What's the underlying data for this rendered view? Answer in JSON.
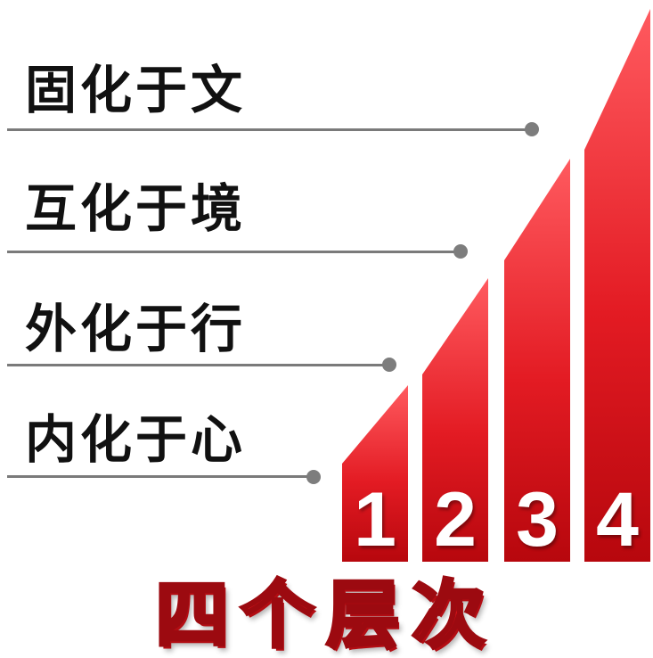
{
  "levels": [
    {
      "label": "固化于文",
      "number": "4"
    },
    {
      "label": "互化于境",
      "number": "3"
    },
    {
      "label": "外化于行",
      "number": "2"
    },
    {
      "label": "内化于心",
      "number": "1"
    }
  ],
  "footer_title": "四个层次",
  "colors": {
    "bar_top": "#ff5a5f",
    "bar_bottom": "#b7070d",
    "line": "#7a7a7a",
    "text": "#111111",
    "title": "#e3141a"
  }
}
